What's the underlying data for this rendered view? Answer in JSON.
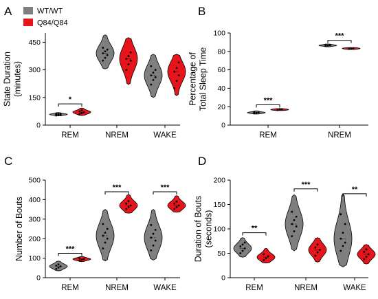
{
  "legend": {
    "entries": [
      {
        "label": "WT/WT",
        "color": "#7f7f7f"
      },
      {
        "label": "Q84/Q84",
        "color": "#e8141b"
      }
    ],
    "placement": "top-left"
  },
  "chart_data": [
    {
      "panel": "A",
      "type": "violin",
      "ylabel": "State Duration\n(minutes)",
      "ylim": [
        0,
        500
      ],
      "yticks": [
        0,
        150,
        300,
        450
      ],
      "categories": [
        "REM",
        "NREM",
        "WAKE"
      ],
      "series": [
        {
          "name": "WT/WT",
          "color": "#7f7f7f",
          "groups": [
            {
              "center": 58,
              "min": 50,
              "max": 68,
              "points": [
                52,
                55,
                57,
                58,
                60,
                62,
                64
              ]
            },
            {
              "center": 390,
              "min": 305,
              "max": 490,
              "points": [
                350,
                365,
                380,
                390,
                400,
                410,
                420
              ]
            },
            {
              "center": 270,
              "min": 150,
              "max": 385,
              "points": [
                220,
                245,
                260,
                270,
                285,
                300,
                320
              ]
            }
          ]
        },
        {
          "name": "Q84/Q84",
          "color": "#e8141b",
          "groups": [
            {
              "center": 70,
              "min": 52,
              "max": 92,
              "points": [
                60,
                65,
                70,
                74,
                80
              ]
            },
            {
              "center": 360,
              "min": 220,
              "max": 475,
              "points": [
                300,
                330,
                350,
                360,
                375,
                395
              ]
            },
            {
              "center": 290,
              "min": 160,
              "max": 385,
              "points": [
                200,
                240,
                270,
                290,
                310,
                340
              ]
            }
          ]
        }
      ],
      "significance": [
        {
          "category": "REM",
          "label": "*",
          "y": 115
        }
      ]
    },
    {
      "panel": "B",
      "type": "violin",
      "ylabel": "Percentage of\nTotal Sleep Time",
      "ylim": [
        0,
        100
      ],
      "yticks": [
        0,
        20,
        40,
        60,
        80,
        100
      ],
      "categories": [
        "REM",
        "NREM"
      ],
      "series": [
        {
          "name": "WT/WT",
          "color": "#7f7f7f",
          "groups": [
            {
              "center": 13.5,
              "min": 12,
              "max": 15.5,
              "points": [
                12.8,
                13.3,
                13.7,
                14.1
              ]
            },
            {
              "center": 86.5,
              "min": 85,
              "max": 88,
              "points": [
                85.8,
                86.3,
                86.7,
                87.1
              ]
            }
          ]
        },
        {
          "name": "Q84/Q84",
          "color": "#e8141b",
          "groups": [
            {
              "center": 16.8,
              "min": 15.8,
              "max": 18,
              "points": [
                16.3,
                16.8,
                17.2
              ]
            },
            {
              "center": 83.2,
              "min": 82,
              "max": 84.2,
              "points": [
                82.8,
                83.2,
                83.6
              ]
            }
          ]
        }
      ],
      "significance": [
        {
          "category": "REM",
          "label": "***",
          "y": 22
        },
        {
          "category": "NREM",
          "label": "***",
          "y": 92
        }
      ]
    },
    {
      "panel": "C",
      "type": "violin",
      "ylabel": "Number of Bouts",
      "ylim": [
        0,
        500
      ],
      "yticks": [
        0,
        100,
        200,
        300,
        400,
        500
      ],
      "categories": [
        "REM",
        "NREM",
        "WAKE"
      ],
      "series": [
        {
          "name": "WT/WT",
          "color": "#7f7f7f",
          "groups": [
            {
              "center": 58,
              "min": 35,
              "max": 85,
              "points": [
                45,
                52,
                58,
                62,
                68
              ]
            },
            {
              "center": 215,
              "min": 85,
              "max": 350,
              "points": [
                150,
                180,
                200,
                215,
                230,
                250,
                275
              ]
            },
            {
              "center": 205,
              "min": 90,
              "max": 350,
              "points": [
                140,
                165,
                190,
                205,
                225,
                245,
                270
              ]
            }
          ]
        },
        {
          "name": "Q84/Q84",
          "color": "#e8141b",
          "groups": [
            {
              "center": 95,
              "min": 82,
              "max": 108,
              "points": [
                88,
                92,
                96,
                100
              ]
            },
            {
              "center": 370,
              "min": 330,
              "max": 425,
              "points": [
                352,
                362,
                370,
                380,
                392
              ]
            },
            {
              "center": 370,
              "min": 335,
              "max": 420,
              "points": [
                352,
                362,
                370,
                380,
                390
              ]
            }
          ]
        }
      ],
      "significance": [
        {
          "category": "REM",
          "label": "***",
          "y": 125
        },
        {
          "category": "NREM",
          "label": "***",
          "y": 440
        },
        {
          "category": "WAKE",
          "label": "***",
          "y": 440
        }
      ]
    },
    {
      "panel": "D",
      "type": "violin",
      "ylabel": "Duration of Bouts\n(seconds)",
      "ylim": [
        0,
        200
      ],
      "yticks": [
        0,
        50,
        100,
        150,
        200
      ],
      "categories": [
        "REM",
        "NREM",
        "WAKE"
      ],
      "series": [
        {
          "name": "WT/WT",
          "color": "#7f7f7f",
          "groups": [
            {
              "center": 60,
              "min": 42,
              "max": 82,
              "points": [
                50,
                55,
                60,
                64,
                68,
                72
              ]
            },
            {
              "center": 110,
              "min": 55,
              "max": 170,
              "points": [
                85,
                95,
                105,
                110,
                118,
                125,
                135
              ]
            },
            {
              "center": 80,
              "min": 22,
              "max": 172,
              "points": [
                55,
                65,
                72,
                80,
                92,
                110,
                130
              ]
            }
          ]
        },
        {
          "name": "Q84/Q84",
          "color": "#e8141b",
          "groups": [
            {
              "center": 42,
              "min": 30,
              "max": 60,
              "points": [
                36,
                40,
                44,
                48
              ]
            },
            {
              "center": 57,
              "min": 32,
              "max": 82,
              "points": [
                45,
                52,
                57,
                62,
                68
              ]
            },
            {
              "center": 48,
              "min": 28,
              "max": 68,
              "points": [
                38,
                43,
                48,
                53,
                58
              ]
            }
          ]
        }
      ],
      "significance": [
        {
          "category": "REM",
          "label": "**",
          "y": 92
        },
        {
          "category": "NREM",
          "label": "***",
          "y": 182
        },
        {
          "category": "WAKE",
          "label": "**",
          "y": 172
        }
      ]
    }
  ]
}
